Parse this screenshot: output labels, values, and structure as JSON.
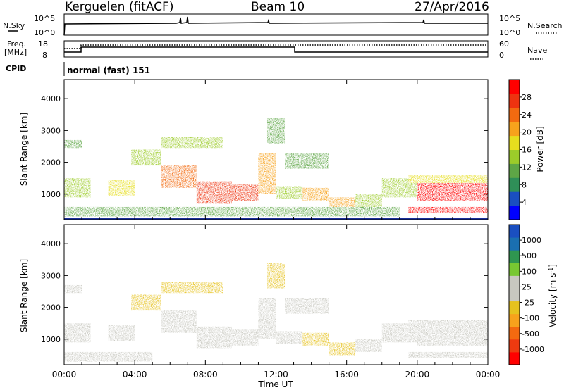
{
  "header": {
    "title": "Kerguelen (fitACF)",
    "beam": "Beam 10",
    "date": "27/Apr/2016"
  },
  "top_panels": {
    "nsky_label": "N.Sky",
    "nsearch_label": "N.Search",
    "nsky_ticks": [
      "10^5",
      "10^0"
    ],
    "nsearch_ticks": [
      "10^5",
      "10^0"
    ],
    "freq_label": "Freq.",
    "freq_unit": "[MHz]",
    "freq_ticks": [
      "18",
      "8"
    ],
    "nave_label": "Nave",
    "nave_ticks": [
      "60",
      "0"
    ],
    "cpid_label": "CPID",
    "cpid_value": "normal (fast) 151"
  },
  "chart_data": [
    {
      "type": "heatmap",
      "name": "power",
      "ylabel": "Slant Range [km]",
      "xlabel": "",
      "yticks": [
        "4000",
        "3000",
        "2000",
        "1000"
      ],
      "ylim": [
        200,
        4600
      ],
      "colorbar_label": "Power [dB]",
      "colorbar_ticks": [
        "28",
        "24",
        "20",
        "16",
        "12",
        "8",
        "4"
      ],
      "colors": [
        "#0000ff",
        "#1a4fc0",
        "#2f8f58",
        "#5ea646",
        "#9ccc2a",
        "#e6de1e",
        "#f7a21c",
        "#f36a10",
        "#ee3310",
        "#ff0000"
      ],
      "regions": [
        {
          "t": [
            0.0,
            1.5
          ],
          "r": [
            900,
            1500
          ],
          "v": 14
        },
        {
          "t": [
            0.0,
            1.0
          ],
          "r": [
            2450,
            2700
          ],
          "v": 10
        },
        {
          "t": [
            2.5,
            4.0
          ],
          "r": [
            950,
            1450
          ],
          "v": 17
        },
        {
          "t": [
            3.8,
            5.5
          ],
          "r": [
            1900,
            2400
          ],
          "v": 14
        },
        {
          "t": [
            5.5,
            9.0
          ],
          "r": [
            2450,
            2800
          ],
          "v": 12
        },
        {
          "t": [
            5.5,
            7.5
          ],
          "r": [
            1200,
            1900
          ],
          "v": 22
        },
        {
          "t": [
            7.5,
            9.5
          ],
          "r": [
            700,
            1400
          ],
          "v": 26
        },
        {
          "t": [
            9.5,
            11.0
          ],
          "r": [
            800,
            1300
          ],
          "v": 24
        },
        {
          "t": [
            11.0,
            12.0
          ],
          "r": [
            1000,
            2300
          ],
          "v": 18
        },
        {
          "t": [
            11.5,
            12.5
          ],
          "r": [
            2600,
            3400
          ],
          "v": 10
        },
        {
          "t": [
            12.0,
            13.5
          ],
          "r": [
            850,
            1250
          ],
          "v": 14
        },
        {
          "t": [
            13.5,
            15.0
          ],
          "r": [
            800,
            1200
          ],
          "v": 18
        },
        {
          "t": [
            12.5,
            15.0
          ],
          "r": [
            1800,
            2300
          ],
          "v": 10
        },
        {
          "t": [
            15.0,
            16.5
          ],
          "r": [
            500,
            900
          ],
          "v": 18
        },
        {
          "t": [
            16.5,
            18.0
          ],
          "r": [
            600,
            1000
          ],
          "v": 12
        },
        {
          "t": [
            18.0,
            20.0
          ],
          "r": [
            900,
            1500
          ],
          "v": 14
        },
        {
          "t": [
            20.0,
            24.0
          ],
          "r": [
            800,
            1400
          ],
          "v": 27
        },
        {
          "t": [
            19.5,
            24.0
          ],
          "r": [
            1350,
            1600
          ],
          "v": 16
        },
        {
          "t": [
            19.5,
            24.0
          ],
          "r": [
            400,
            600
          ],
          "v": 28
        },
        {
          "t": [
            0.0,
            19.0
          ],
          "r": [
            300,
            600
          ],
          "v": 10
        }
      ]
    },
    {
      "type": "heatmap",
      "name": "velocity",
      "ylabel": "Slant Range [km]",
      "xlabel": "Time UT",
      "yticks": [
        "4000",
        "3000",
        "2000",
        "1000"
      ],
      "ylim": [
        200,
        4600
      ],
      "xticks": [
        "00:00",
        "04:00",
        "08:00",
        "12:00",
        "16:00",
        "20:00",
        "00:00"
      ],
      "xlim": [
        0,
        24
      ],
      "colorbar_label": "Velocity [m s",
      "colorbar_label_sup": "-1",
      "colorbar_label_end": "]",
      "colorbar_ticks": [
        "1000",
        "500",
        "100",
        "25",
        "-25",
        "-100",
        "-500",
        "-1000"
      ],
      "colors": [
        "#ff0000",
        "#ee3a10",
        "#f36a10",
        "#f7a21c",
        "#e6c21e",
        "#c8c8c0",
        "#c8c8c0",
        "#78c832",
        "#2f9650",
        "#1a6fb0",
        "#1a4fc0"
      ],
      "regions": [
        {
          "t": [
            0.0,
            1.5
          ],
          "r": [
            900,
            1500
          ],
          "v": -20
        },
        {
          "t": [
            0.0,
            1.0
          ],
          "r": [
            2450,
            2700
          ],
          "v": -80
        },
        {
          "t": [
            2.5,
            4.0
          ],
          "r": [
            950,
            1450
          ],
          "v": 0
        },
        {
          "t": [
            3.8,
            5.5
          ],
          "r": [
            1900,
            2400
          ],
          "v": -120
        },
        {
          "t": [
            5.5,
            9.0
          ],
          "r": [
            2450,
            2800
          ],
          "v": -300
        },
        {
          "t": [
            5.5,
            7.5
          ],
          "r": [
            1200,
            1900
          ],
          "v": 0
        },
        {
          "t": [
            7.5,
            9.5
          ],
          "r": [
            700,
            1400
          ],
          "v": 0
        },
        {
          "t": [
            9.5,
            11.0
          ],
          "r": [
            800,
            1300
          ],
          "v": 0
        },
        {
          "t": [
            11.0,
            12.0
          ],
          "r": [
            1000,
            2300
          ],
          "v": -10
        },
        {
          "t": [
            11.5,
            12.5
          ],
          "r": [
            2600,
            3400
          ],
          "v": -150
        },
        {
          "t": [
            12.0,
            13.5
          ],
          "r": [
            850,
            1250
          ],
          "v": -20
        },
        {
          "t": [
            13.5,
            15.0
          ],
          "r": [
            800,
            1200
          ],
          "v": -200
        },
        {
          "t": [
            12.5,
            15.0
          ],
          "r": [
            1800,
            2300
          ],
          "v": -60
        },
        {
          "t": [
            15.0,
            16.5
          ],
          "r": [
            500,
            900
          ],
          "v": -250
        },
        {
          "t": [
            16.5,
            18.0
          ],
          "r": [
            600,
            1000
          ],
          "v": 60
        },
        {
          "t": [
            18.0,
            20.0
          ],
          "r": [
            900,
            1500
          ],
          "v": 0
        },
        {
          "t": [
            20.0,
            24.0
          ],
          "r": [
            800,
            1400
          ],
          "v": 0
        },
        {
          "t": [
            19.5,
            24.0
          ],
          "r": [
            1350,
            1600
          ],
          "v": 10
        },
        {
          "t": [
            19.5,
            24.0
          ],
          "r": [
            400,
            600
          ],
          "v": 80
        },
        {
          "t": [
            0.0,
            5.0
          ],
          "r": [
            300,
            600
          ],
          "v": -90
        }
      ]
    }
  ]
}
